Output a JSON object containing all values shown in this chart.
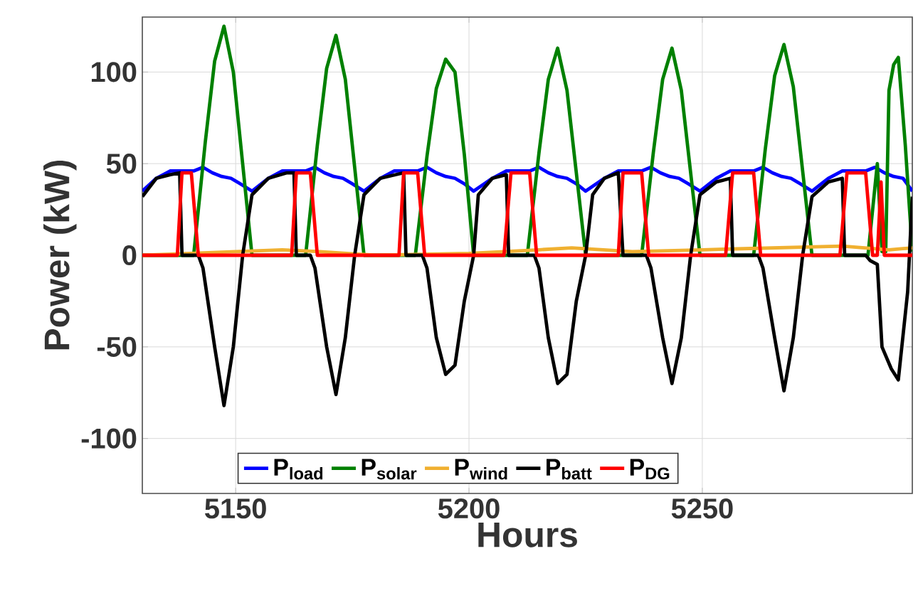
{
  "chart_data": {
    "type": "line",
    "xlabel": "Hours",
    "ylabel": "Power (kW)",
    "xlim": [
      5130,
      5295
    ],
    "ylim": [
      -130,
      130
    ],
    "xticks": [
      5150,
      5200,
      5250
    ],
    "yticks": [
      -100,
      -50,
      0,
      50,
      100
    ],
    "grid": true,
    "legend": "bottom",
    "line_style": "solid",
    "marker": "none",
    "series": [
      {
        "name": "P$_{load}$",
        "color": "#0000ff",
        "x": [
          5130,
          5133,
          5136,
          5141,
          5143,
          5145,
          5147,
          5149,
          5151,
          5153.5,
          5157,
          5160,
          5165,
          5167,
          5169,
          5171,
          5173,
          5175,
          5177.5,
          5181,
          5184,
          5189,
          5191,
          5193,
          5195,
          5197,
          5199,
          5201,
          5205,
          5208,
          5213,
          5215,
          5217,
          5219,
          5221,
          5223,
          5225,
          5229,
          5232,
          5237,
          5239,
          5241,
          5243,
          5245,
          5247,
          5249.5,
          5253,
          5256,
          5261,
          5263,
          5265,
          5267,
          5269,
          5271,
          5273.5,
          5277,
          5280,
          5285,
          5287,
          5289,
          5291,
          5293,
          5295
        ],
        "values": [
          35,
          42,
          46,
          46,
          48,
          45,
          43,
          42,
          39,
          35,
          42,
          46,
          46,
          48,
          45,
          43,
          42,
          39,
          35,
          42,
          46,
          46,
          48,
          45,
          43,
          42,
          39,
          35,
          42,
          46,
          46,
          48,
          45,
          43,
          42,
          39,
          35,
          42,
          46,
          46,
          48,
          45,
          43,
          42,
          39,
          35,
          42,
          46,
          46,
          48,
          45,
          43,
          42,
          39,
          35,
          42,
          46,
          46,
          48,
          45,
          43,
          42,
          35
        ]
      },
      {
        "name": "P$_{solar}$",
        "color": "#008000",
        "x": [
          5130,
          5141,
          5143.5,
          5145.5,
          5147.5,
          5149.5,
          5151.5,
          5153.5,
          5165,
          5167.5,
          5169.5,
          5171.5,
          5173.5,
          5175.5,
          5177.5,
          5188.5,
          5191,
          5193,
          5195,
          5197,
          5199,
          5201,
          5212.5,
          5215,
          5217,
          5219,
          5221,
          5223,
          5225,
          5237,
          5239.5,
          5241.5,
          5243.5,
          5245.5,
          5247.5,
          5249.5,
          5261,
          5263.5,
          5265.5,
          5267.5,
          5269.5,
          5271.5,
          5273.5,
          5285.5,
          5287.5,
          5288.5,
          5289.3,
          5290,
          5291,
          5292,
          5293.5,
          5295
        ],
        "values": [
          0,
          0,
          62,
          106,
          125,
          100,
          50,
          0,
          0,
          60,
          102,
          120,
          96,
          48,
          0,
          0,
          54,
          91,
          107,
          100,
          55,
          0,
          0,
          56,
          96,
          113,
          90,
          45,
          0,
          0,
          56,
          96,
          113,
          90,
          45,
          0,
          0,
          58,
          98,
          115,
          92,
          46,
          0,
          0,
          50,
          2,
          2,
          90,
          104,
          108,
          60,
          2
        ]
      },
      {
        "name": "P$_{wind}$",
        "color": "#f0b030",
        "x": [
          5130,
          5140,
          5150,
          5160,
          5168,
          5180,
          5200,
          5215,
          5222,
          5235,
          5250,
          5265,
          5280,
          5290,
          5295
        ],
        "values": [
          0,
          1,
          2,
          3,
          2,
          0,
          1,
          3,
          4,
          2,
          3,
          4,
          5,
          3,
          4
        ]
      },
      {
        "name": "P$_{batt}$",
        "color": "#000000",
        "x": [
          5130,
          5133,
          5136,
          5138,
          5138.5,
          5142,
          5143,
          5145.5,
          5147.5,
          5149.5,
          5151.5,
          5153.5,
          5157,
          5161,
          5162.5,
          5163,
          5166,
          5167,
          5169.5,
          5171.5,
          5173.5,
          5175.5,
          5177.5,
          5181,
          5186,
          5186.5,
          5190,
          5191,
          5193,
          5195,
          5197,
          5199,
          5201,
          5202,
          5205,
          5208,
          5208.5,
          5214,
          5215,
          5217,
          5219,
          5221,
          5223,
          5225,
          5226.5,
          5229,
          5232,
          5233,
          5238,
          5239,
          5241.5,
          5243.5,
          5245.5,
          5247.5,
          5249.5,
          5253,
          5256,
          5256.5,
          5262,
          5263,
          5265.5,
          5267.5,
          5269.5,
          5271.5,
          5273.5,
          5277,
          5280,
          5280.5,
          5285,
          5286,
          5287.5,
          5288.5,
          5290.5,
          5292,
          5294,
          5295
        ],
        "values": [
          32,
          42,
          44,
          45,
          0,
          0,
          -7,
          -50,
          -82,
          -50,
          0,
          33,
          42,
          45,
          45,
          0,
          0,
          -7,
          -50,
          -76,
          -45,
          0,
          33,
          42,
          45,
          0,
          0,
          -7,
          -45,
          -65,
          -60,
          -25,
          0,
          33,
          42,
          44,
          0,
          0,
          -7,
          -45,
          -70,
          -65,
          -25,
          0,
          33,
          42,
          45,
          0,
          0,
          -7,
          -45,
          -70,
          -45,
          0,
          33,
          40,
          42,
          0,
          0,
          -7,
          -45,
          -74,
          -45,
          0,
          32,
          40,
          42,
          0,
          0,
          -3,
          -5,
          -50,
          -62,
          -68,
          -20,
          32
        ]
      },
      {
        "name": "P$_{DG}$",
        "color": "#ff0000",
        "x": [
          5130,
          5137.5,
          5138.5,
          5140.5,
          5142,
          5162,
          5163,
          5166,
          5167.5,
          5185,
          5186,
          5189,
          5190.5,
          5207.5,
          5209,
          5213,
          5214.5,
          5232,
          5233,
          5237,
          5238.5,
          5255,
          5256.5,
          5261,
          5262.5,
          5279.5,
          5281,
          5285,
          5286.5,
          5287.5,
          5288.3,
          5289,
          5295
        ],
        "values": [
          0,
          0,
          45,
          45,
          0,
          0,
          45,
          45,
          0,
          0,
          45,
          45,
          0,
          0,
          45,
          45,
          0,
          0,
          45,
          45,
          0,
          0,
          45,
          45,
          0,
          0,
          45,
          45,
          0,
          0,
          40,
          0,
          0
        ]
      }
    ]
  }
}
